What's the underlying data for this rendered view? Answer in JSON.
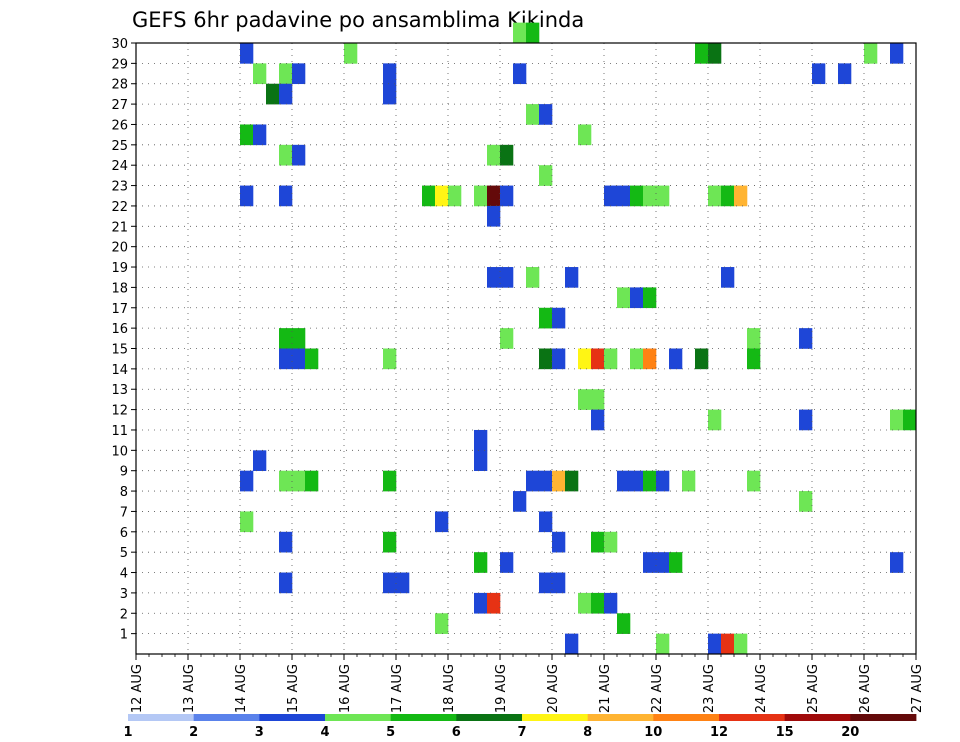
{
  "chart_data": {
    "type": "heatmap",
    "title": "GEFS 6hr padavine po ansamblima Kikinda",
    "xlabel": "",
    "ylabel": "",
    "x_ticks": [
      "12 AUG",
      "13 AUG",
      "14 AUG",
      "15 AUG",
      "16 AUG",
      "17 AUG",
      "18 AUG",
      "19 AUG",
      "20 AUG",
      "21 AUG",
      "22 AUG",
      "23 AUG",
      "24 AUG",
      "25 AUG",
      "26 AUG",
      "27 AUG"
    ],
    "y_ticks": [
      "1",
      "2",
      "3",
      "4",
      "5",
      "6",
      "7",
      "8",
      "9",
      "10",
      "11",
      "12",
      "13",
      "14",
      "15",
      "16",
      "17",
      "18",
      "19",
      "20",
      "21",
      "22",
      "23",
      "24",
      "25",
      "26",
      "27",
      "28",
      "29",
      "30"
    ],
    "xlim": [
      "12 AUG 00",
      "27 AUG 00"
    ],
    "ylim": [
      0,
      30
    ],
    "grid": true,
    "time_step_hours": 6,
    "colorbar": {
      "labels": [
        "1",
        "2",
        "3",
        "4",
        "5",
        "6",
        "7",
        "8",
        "10",
        "12",
        "15",
        "20"
      ],
      "bounds": [
        1,
        2,
        3,
        4,
        5,
        6,
        7,
        8,
        10,
        12,
        15,
        20,
        30
      ],
      "colors": [
        "#b4c8f5",
        "#5a82eb",
        "#1e46d7",
        "#6ee655",
        "#14b914",
        "#0a7314",
        "#fff514",
        "#ffb432",
        "#ff8214",
        "#e63214",
        "#a00a0a",
        "#640a0a"
      ],
      "placement": "bottom"
    },
    "cells": [
      {
        "m": 30,
        "t": "19 AUG 06",
        "c": 3
      },
      {
        "m": 30,
        "t": "19 AUG 12",
        "c": 4
      },
      {
        "m": 29,
        "t": "14 AUG 00",
        "c": 2
      },
      {
        "m": 29,
        "t": "16 AUG 00",
        "c": 3
      },
      {
        "m": 29,
        "t": "22 AUG 18",
        "c": 4
      },
      {
        "m": 29,
        "t": "23 AUG 00",
        "c": 5
      },
      {
        "m": 29,
        "t": "26 AUG 00",
        "c": 3
      },
      {
        "m": 29,
        "t": "26 AUG 12",
        "c": 2
      },
      {
        "m": 28,
        "t": "14 AUG 06",
        "c": 3
      },
      {
        "m": 28,
        "t": "14 AUG 18",
        "c": 3
      },
      {
        "m": 28,
        "t": "15 AUG 00",
        "c": 2
      },
      {
        "m": 28,
        "t": "16 AUG 18",
        "c": 2
      },
      {
        "m": 28,
        "t": "19 AUG 06",
        "c": 2
      },
      {
        "m": 28,
        "t": "25 AUG 00",
        "c": 2
      },
      {
        "m": 28,
        "t": "25 AUG 12",
        "c": 2
      },
      {
        "m": 27,
        "t": "14 AUG 12",
        "c": 5
      },
      {
        "m": 27,
        "t": "14 AUG 18",
        "c": 2
      },
      {
        "m": 27,
        "t": "16 AUG 18",
        "c": 2
      },
      {
        "m": 26,
        "t": "19 AUG 12",
        "c": 3
      },
      {
        "m": 26,
        "t": "19 AUG 18",
        "c": 2
      },
      {
        "m": 25,
        "t": "14 AUG 00",
        "c": 4
      },
      {
        "m": 25,
        "t": "14 AUG 06",
        "c": 2
      },
      {
        "m": 25,
        "t": "20 AUG 12",
        "c": 3
      },
      {
        "m": 24,
        "t": "14 AUG 18",
        "c": 3
      },
      {
        "m": 24,
        "t": "15 AUG 00",
        "c": 2
      },
      {
        "m": 24,
        "t": "18 AUG 18",
        "c": 3
      },
      {
        "m": 24,
        "t": "19 AUG 00",
        "c": 5
      },
      {
        "m": 23,
        "t": "19 AUG 18",
        "c": 3
      },
      {
        "m": 22,
        "t": "14 AUG 00",
        "c": 2
      },
      {
        "m": 22,
        "t": "14 AUG 18",
        "c": 2
      },
      {
        "m": 22,
        "t": "17 AUG 12",
        "c": 4
      },
      {
        "m": 22,
        "t": "17 AUG 18",
        "c": 6
      },
      {
        "m": 22,
        "t": "18 AUG 00",
        "c": 3
      },
      {
        "m": 22,
        "t": "18 AUG 12",
        "c": 3
      },
      {
        "m": 22,
        "t": "18 AUG 18",
        "c": 11
      },
      {
        "m": 22,
        "t": "19 AUG 00",
        "c": 2
      },
      {
        "m": 22,
        "t": "21 AUG 00",
        "c": 2
      },
      {
        "m": 22,
        "t": "21 AUG 06",
        "c": 2
      },
      {
        "m": 22,
        "t": "21 AUG 12",
        "c": 4
      },
      {
        "m": 22,
        "t": "21 AUG 18",
        "c": 3
      },
      {
        "m": 22,
        "t": "22 AUG 00",
        "c": 3
      },
      {
        "m": 22,
        "t": "23 AUG 00",
        "c": 3
      },
      {
        "m": 22,
        "t": "23 AUG 06",
        "c": 4
      },
      {
        "m": 22,
        "t": "23 AUG 12",
        "c": 7
      },
      {
        "m": 21,
        "t": "18 AUG 18",
        "c": 2
      },
      {
        "m": 18,
        "t": "23 AUG 06",
        "c": 2
      },
      {
        "m": 18,
        "t": "18 AUG 18",
        "c": 2
      },
      {
        "m": 18,
        "t": "19 AUG 00",
        "c": 2
      },
      {
        "m": 18,
        "t": "19 AUG 12",
        "c": 3
      },
      {
        "m": 18,
        "t": "20 AUG 06",
        "c": 2
      },
      {
        "m": 17,
        "t": "21 AUG 06",
        "c": 3
      },
      {
        "m": 17,
        "t": "21 AUG 12",
        "c": 2
      },
      {
        "m": 17,
        "t": "21 AUG 18",
        "c": 4
      },
      {
        "m": 16,
        "t": "19 AUG 18",
        "c": 4
      },
      {
        "m": 16,
        "t": "20 AUG 00",
        "c": 2
      },
      {
        "m": 15,
        "t": "14 AUG 18",
        "c": 4
      },
      {
        "m": 15,
        "t": "15 AUG 00",
        "c": 4
      },
      {
        "m": 15,
        "t": "19 AUG 00",
        "c": 3
      },
      {
        "m": 15,
        "t": "23 AUG 18",
        "c": 3
      },
      {
        "m": 15,
        "t": "24 AUG 18",
        "c": 2
      },
      {
        "m": 14,
        "t": "14 AUG 18",
        "c": 2
      },
      {
        "m": 14,
        "t": "15 AUG 00",
        "c": 2
      },
      {
        "m": 14,
        "t": "15 AUG 06",
        "c": 4
      },
      {
        "m": 14,
        "t": "16 AUG 18",
        "c": 3
      },
      {
        "m": 14,
        "t": "19 AUG 18",
        "c": 5
      },
      {
        "m": 14,
        "t": "20 AUG 00",
        "c": 2
      },
      {
        "m": 14,
        "t": "20 AUG 12",
        "c": 6
      },
      {
        "m": 14,
        "t": "20 AUG 18",
        "c": 9
      },
      {
        "m": 14,
        "t": "21 AUG 00",
        "c": 3
      },
      {
        "m": 14,
        "t": "21 AUG 12",
        "c": 3
      },
      {
        "m": 14,
        "t": "21 AUG 18",
        "c": 8
      },
      {
        "m": 14,
        "t": "22 AUG 06",
        "c": 2
      },
      {
        "m": 14,
        "t": "22 AUG 18",
        "c": 5
      },
      {
        "m": 14,
        "t": "23 AUG 18",
        "c": 4
      },
      {
        "m": 12,
        "t": "20 AUG 12",
        "c": 3
      },
      {
        "m": 12,
        "t": "20 AUG 18",
        "c": 3
      },
      {
        "m": 11,
        "t": "20 AUG 18",
        "c": 2
      },
      {
        "m": 11,
        "t": "23 AUG 00",
        "c": 3
      },
      {
        "m": 11,
        "t": "24 AUG 18",
        "c": 2
      },
      {
        "m": 11,
        "t": "26 AUG 12",
        "c": 3
      },
      {
        "m": 11,
        "t": "26 AUG 18",
        "c": 4
      },
      {
        "m": 10,
        "t": "18 AUG 12",
        "c": 2
      },
      {
        "m": 9,
        "t": "18 AUG 12",
        "c": 2
      },
      {
        "m": 9,
        "t": "14 AUG 06",
        "c": 2
      },
      {
        "m": 8,
        "t": "14 AUG 00",
        "c": 2
      },
      {
        "m": 8,
        "t": "14 AUG 18",
        "c": 3
      },
      {
        "m": 8,
        "t": "15 AUG 00",
        "c": 3
      },
      {
        "m": 8,
        "t": "15 AUG 06",
        "c": 4
      },
      {
        "m": 8,
        "t": "16 AUG 18",
        "c": 4
      },
      {
        "m": 8,
        "t": "19 AUG 12",
        "c": 2
      },
      {
        "m": 8,
        "t": "19 AUG 18",
        "c": 2
      },
      {
        "m": 8,
        "t": "20 AUG 00",
        "c": 7
      },
      {
        "m": 8,
        "t": "20 AUG 06",
        "c": 5
      },
      {
        "m": 8,
        "t": "21 AUG 06",
        "c": 2
      },
      {
        "m": 8,
        "t": "21 AUG 12",
        "c": 2
      },
      {
        "m": 8,
        "t": "21 AUG 18",
        "c": 4
      },
      {
        "m": 8,
        "t": "22 AUG 00",
        "c": 2
      },
      {
        "m": 8,
        "t": "22 AUG 12",
        "c": 3
      },
      {
        "m": 8,
        "t": "23 AUG 18",
        "c": 3
      },
      {
        "m": 7,
        "t": "19 AUG 06",
        "c": 2
      },
      {
        "m": 7,
        "t": "24 AUG 18",
        "c": 3
      },
      {
        "m": 6,
        "t": "14 AUG 00",
        "c": 3
      },
      {
        "m": 6,
        "t": "17 AUG 18",
        "c": 2
      },
      {
        "m": 6,
        "t": "19 AUG 18",
        "c": 2
      },
      {
        "m": 5,
        "t": "14 AUG 18",
        "c": 2
      },
      {
        "m": 5,
        "t": "16 AUG 18",
        "c": 4
      },
      {
        "m": 5,
        "t": "20 AUG 00",
        "c": 2
      },
      {
        "m": 5,
        "t": "20 AUG 18",
        "c": 4
      },
      {
        "m": 5,
        "t": "21 AUG 00",
        "c": 3
      },
      {
        "m": 4,
        "t": "18 AUG 12",
        "c": 4
      },
      {
        "m": 4,
        "t": "19 AUG 00",
        "c": 2
      },
      {
        "m": 4,
        "t": "21 AUG 18",
        "c": 2
      },
      {
        "m": 4,
        "t": "22 AUG 00",
        "c": 2
      },
      {
        "m": 4,
        "t": "22 AUG 06",
        "c": 4
      },
      {
        "m": 4,
        "t": "26 AUG 12",
        "c": 2
      },
      {
        "m": 3,
        "t": "14 AUG 18",
        "c": 2
      },
      {
        "m": 3,
        "t": "16 AUG 18",
        "c": 2
      },
      {
        "m": 3,
        "t": "17 AUG 00",
        "c": 2
      },
      {
        "m": 3,
        "t": "19 AUG 18",
        "c": 2
      },
      {
        "m": 3,
        "t": "20 AUG 00",
        "c": 2
      },
      {
        "m": 2,
        "t": "18 AUG 12",
        "c": 2
      },
      {
        "m": 2,
        "t": "18 AUG 18",
        "c": 9
      },
      {
        "m": 2,
        "t": "20 AUG 12",
        "c": 3
      },
      {
        "m": 2,
        "t": "20 AUG 18",
        "c": 4
      },
      {
        "m": 2,
        "t": "21 AUG 00",
        "c": 2
      },
      {
        "m": 1,
        "t": "17 AUG 18",
        "c": 3
      },
      {
        "m": 1,
        "t": "21 AUG 06",
        "c": 4
      },
      {
        "m": 0,
        "t": "20 AUG 06",
        "c": 2
      },
      {
        "m": 0,
        "t": "22 AUG 00",
        "c": 3
      },
      {
        "m": 0,
        "t": "23 AUG 00",
        "c": 2
      },
      {
        "m": 0,
        "t": "23 AUG 06",
        "c": 9
      },
      {
        "m": 0,
        "t": "23 AUG 12",
        "c": 3
      }
    ]
  }
}
